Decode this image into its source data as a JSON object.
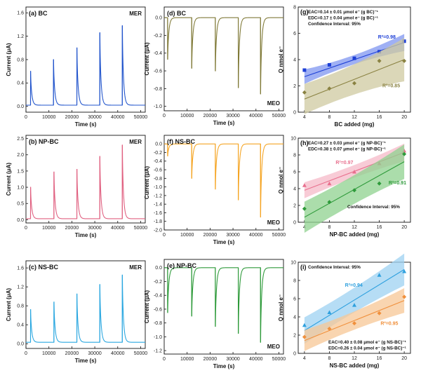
{
  "chart_data": [
    {
      "id": "a",
      "type": "line",
      "title": "(a) BC",
      "tag": "MER",
      "color": "#2255cc",
      "xlabel": "Time (s)",
      "ylabel": "Current (μA)",
      "xlim": [
        0,
        52000
      ],
      "ylim": [
        -0.1,
        1.7
      ],
      "xticks": [
        0,
        10000,
        20000,
        30000,
        40000,
        50000
      ],
      "yticks": [
        0.0,
        0.4,
        0.8,
        1.2,
        1.6
      ],
      "baseline": 0.02,
      "peaks": [
        {
          "t": 2000,
          "v": 0.6
        },
        {
          "t": 12000,
          "v": 0.8
        },
        {
          "t": 22200,
          "v": 1.0
        },
        {
          "t": 32200,
          "v": 1.26
        },
        {
          "t": 42000,
          "v": 1.38
        }
      ]
    },
    {
      "id": "b",
      "type": "line",
      "title": "(b) NP-BC",
      "tag": "MER",
      "color": "#e06080",
      "xlabel": "Time (s)",
      "ylabel": "Current (μA)",
      "xlim": [
        0,
        52000
      ],
      "ylim": [
        -0.1,
        2.6
      ],
      "xticks": [
        0,
        10000,
        20000,
        30000,
        40000,
        50000
      ],
      "yticks": [
        0.0,
        0.5,
        1.0,
        1.5,
        2.0,
        2.5
      ],
      "baseline": 0.03,
      "peaks": [
        {
          "t": 2000,
          "v": 1.0
        },
        {
          "t": 12200,
          "v": 1.47
        },
        {
          "t": 22200,
          "v": 1.55
        },
        {
          "t": 32200,
          "v": 1.95
        },
        {
          "t": 42000,
          "v": 2.3
        }
      ]
    },
    {
      "id": "c",
      "type": "line",
      "title": "(c) NS-BC",
      "tag": "MER",
      "color": "#2aa7e0",
      "xlabel": "Time (s)",
      "ylabel": "Current (μA)",
      "xlim": [
        0,
        52000
      ],
      "ylim": [
        -0.1,
        1.75
      ],
      "xticks": [
        0,
        10000,
        20000,
        30000,
        40000,
        50000
      ],
      "yticks": [
        0.0,
        0.4,
        0.8,
        1.2,
        1.6
      ],
      "baseline": 0.03,
      "peaks": [
        {
          "t": 2000,
          "v": 0.72
        },
        {
          "t": 12200,
          "v": 0.88
        },
        {
          "t": 22200,
          "v": 1.05
        },
        {
          "t": 32200,
          "v": 1.25
        },
        {
          "t": 42000,
          "v": 1.45
        }
      ]
    },
    {
      "id": "d",
      "type": "line",
      "title": "(d) BC",
      "tag": "MEO",
      "color": "#807a38",
      "xlabel": "Time (s)",
      "ylabel": "Current (μA)",
      "xlim": [
        0,
        52000
      ],
      "ylim": [
        -1.05,
        0.12
      ],
      "xticks": [
        0,
        10000,
        20000,
        30000,
        40000,
        50000
      ],
      "yticks": [
        0.0,
        -0.2,
        -0.4,
        -0.6,
        -0.8,
        -1.0
      ],
      "baseline": 0.0,
      "peaks": [
        {
          "t": 1500,
          "v": -0.47
        },
        {
          "t": 12000,
          "v": -0.57
        },
        {
          "t": 22300,
          "v": -0.6
        },
        {
          "t": 32300,
          "v": -0.79
        },
        {
          "t": 42000,
          "v": -0.86
        }
      ]
    },
    {
      "id": "f",
      "type": "line",
      "title": "(f) NS-BC",
      "tag": "MEO",
      "color": "#f5a524",
      "xlabel": "Time (s)",
      "ylabel": "Current (μA)",
      "xlim": [
        0,
        52000
      ],
      "ylim": [
        -2.0,
        0.2
      ],
      "xticks": [
        0,
        10000,
        20000,
        30000,
        40000,
        50000
      ],
      "yticks": [
        0.0,
        -0.2,
        -0.4,
        -0.6,
        -0.8,
        -1.0,
        -1.2,
        -1.4,
        -1.6,
        -1.8,
        -2.0
      ],
      "baseline": 0.0,
      "peaks": [
        {
          "t": 1500,
          "v": -0.28
        },
        {
          "t": 12000,
          "v": -0.8
        },
        {
          "t": 22300,
          "v": -1.05
        },
        {
          "t": 32300,
          "v": -1.3
        },
        {
          "t": 42000,
          "v": -1.7
        }
      ]
    },
    {
      "id": "e",
      "type": "line",
      "title": "(e) NP-BC",
      "tag": "MEO",
      "color": "#2e9a3a",
      "xlabel": "Time (s)",
      "ylabel": "Current (μA)",
      "xlim": [
        0,
        52000
      ],
      "ylim": [
        -1.25,
        0.12
      ],
      "xticks": [
        0,
        10000,
        20000,
        30000,
        40000,
        50000
      ],
      "yticks": [
        0.0,
        -0.2,
        -0.4,
        -0.6,
        -0.8,
        -1.0,
        -1.2
      ],
      "baseline": 0.0,
      "peaks": [
        {
          "t": 1500,
          "v": -0.65
        },
        {
          "t": 12000,
          "v": -0.7
        },
        {
          "t": 22300,
          "v": -0.85
        },
        {
          "t": 32300,
          "v": -0.95
        },
        {
          "t": 42000,
          "v": -1.08
        }
      ]
    },
    {
      "id": "g",
      "type": "scatter",
      "title": "(g)",
      "xlabel": "BC added (mg)",
      "ylabel": "Q nmol e⁻",
      "xlim": [
        3,
        21
      ],
      "ylim": [
        0,
        8
      ],
      "xticks": [
        4,
        8,
        12,
        16,
        20
      ],
      "yticks": [
        0,
        2,
        4,
        6,
        8
      ],
      "annotations": [
        "EAC=0.14 ± 0.01 μmol e⁻ (g BC)⁻¹",
        "EDC=0.17 ± 0.04 μmol e⁻ (g BC)⁻¹",
        "Confidence Interval:  95%"
      ],
      "series": [
        {
          "x": [
            4,
            8,
            12,
            16,
            20
          ],
          "y": [
            3.2,
            3.6,
            4.1,
            4.6,
            5.4
          ],
          "marker": "square",
          "color": "#1d3fd6",
          "band": "#7f96f0",
          "fit": [
            2.7,
            5.3
          ],
          "spread": [
            0.3,
            0.4
          ],
          "r2": "R²=0.98",
          "r2_at": [
            15.8,
            5.6
          ]
        },
        {
          "x": [
            4,
            8,
            12,
            16,
            20
          ],
          "y": [
            1.5,
            1.8,
            2.2,
            3.9,
            3.9
          ],
          "marker": "diamond",
          "color": "#8a8242",
          "band": "#cfcaa0",
          "fit": [
            1.0,
            4.0
          ],
          "spread": [
            0.9,
            1.4
          ],
          "r2": "R²=0.85",
          "r2_at": [
            16.5,
            1.9
          ]
        }
      ]
    },
    {
      "id": "h",
      "type": "scatter",
      "title": "(h)",
      "xlabel": "NP-BC added (mg)",
      "ylabel": "Q nmol e⁻",
      "xlim": [
        3,
        21
      ],
      "ylim": [
        0,
        10
      ],
      "xticks": [
        4,
        8,
        12,
        16,
        20
      ],
      "yticks": [
        0,
        2,
        4,
        6,
        8,
        10
      ],
      "annotations": [
        "EAC=0.27 ± 0.03 μmol e⁻ (g NP-BC)⁻¹",
        "EDC=0.38 ± 0.07 μmol e⁻ (g NP-BC)⁻¹",
        "Confidence Interval:  95%"
      ],
      "series": [
        {
          "x": [
            4,
            8,
            12,
            16,
            20
          ],
          "y": [
            4.4,
            4.6,
            6.0,
            7.0,
            8.5
          ],
          "marker": "triangle",
          "color": "#e8708e",
          "band": "#f5b9c8",
          "fit": [
            3.8,
            8.3
          ],
          "spread": [
            0.7,
            0.8
          ],
          "r2": "R²=0.97",
          "r2_at": [
            9.0,
            6.9
          ]
        },
        {
          "x": [
            4,
            8,
            12,
            16,
            20
          ],
          "y": [
            1.6,
            2.4,
            3.8,
            4.6,
            8.1
          ],
          "marker": "diamond",
          "color": "#2e9a3a",
          "band": "#8fd18f",
          "fit": [
            0.6,
            7.2
          ],
          "spread": [
            1.6,
            1.8
          ],
          "r2": "R²=0.91",
          "r2_at": [
            17.5,
            4.5
          ]
        }
      ]
    },
    {
      "id": "i",
      "type": "scatter",
      "title": "(i)",
      "xlabel": "NS-BC added (mg)",
      "ylabel": "Q nmol e⁻",
      "xlim": [
        3,
        21
      ],
      "ylim": [
        0,
        10
      ],
      "xticks": [
        4,
        8,
        12,
        16,
        20
      ],
      "yticks": [
        0,
        2,
        4,
        6,
        8,
        10
      ],
      "annotations": [
        "Confidence Interval:  95%",
        "EAC=0.40 ± 0.08 μmol e⁻ (g NS-BC)⁻¹",
        "EDC=0.26 ± 0.04 μmol e⁻ (g NS-BC)⁻¹"
      ],
      "series": [
        {
          "x": [
            4,
            8,
            12,
            16,
            20
          ],
          "y": [
            3.1,
            4.5,
            5.3,
            8.6,
            9.0
          ],
          "marker": "triangle",
          "color": "#2ea0de",
          "band": "#9dd2f2",
          "fit": [
            2.5,
            9.2
          ],
          "spread": [
            1.2,
            1.5
          ],
          "r2": "R²=0.94",
          "r2_at": [
            10.5,
            7.3
          ]
        },
        {
          "x": [
            4,
            8,
            12,
            16,
            20
          ],
          "y": [
            1.8,
            2.7,
            3.3,
            4.4,
            6.2
          ],
          "marker": "diamond",
          "color": "#f0903c",
          "band": "#f7c795",
          "fit": [
            1.4,
            5.8
          ],
          "spread": [
            0.9,
            1.1
          ],
          "r2": "R²=0.95",
          "r2_at": [
            16.2,
            3.1
          ]
        }
      ]
    }
  ]
}
